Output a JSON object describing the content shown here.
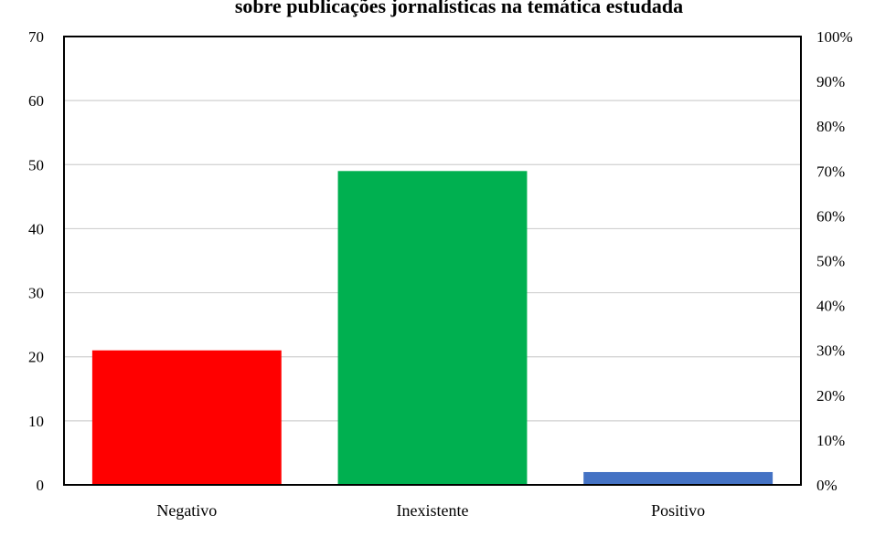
{
  "chart_data": {
    "type": "bar",
    "title": "sobre publicações jornalísticas na temática estudada",
    "categories": [
      "Negativo",
      "Inexistente",
      "Positivo"
    ],
    "values": [
      21,
      49,
      2
    ],
    "colors": [
      "#ff0000",
      "#00b050",
      "#4472c4"
    ],
    "ylim": [
      0,
      70
    ],
    "yticks": [
      0,
      10,
      20,
      30,
      40,
      50,
      60,
      70
    ],
    "y2lim": [
      0,
      100
    ],
    "y2ticks": [
      "0%",
      "10%",
      "20%",
      "30%",
      "40%",
      "50%",
      "60%",
      "70%",
      "80%",
      "90%",
      "100%"
    ],
    "grid": true,
    "legend": "none"
  }
}
